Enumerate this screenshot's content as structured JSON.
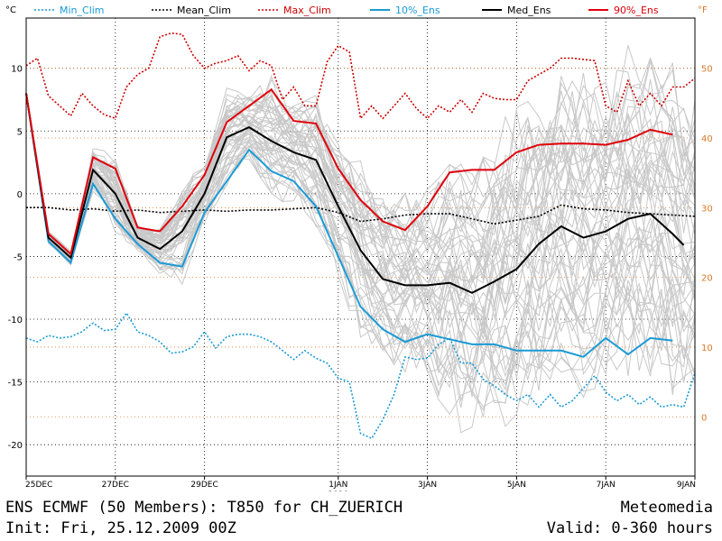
{
  "chart_data": {
    "type": "line",
    "ylabel_left": "°C",
    "ylabel_right": "°F",
    "xlim": [
      0,
      360
    ],
    "ylim": [
      -22.5,
      14
    ],
    "yticks_c": [
      -20,
      -15,
      -10,
      -5,
      0,
      5,
      10
    ],
    "yticks_f": [
      0,
      10,
      20,
      30,
      40,
      50
    ],
    "x_ticks": [
      {
        "x": 0,
        "label": "25DEC"
      },
      {
        "x": 48,
        "label": "27DEC"
      },
      {
        "x": 96,
        "label": "29DEC"
      },
      {
        "x": 168,
        "label": "1JAN",
        "sub": "2010"
      },
      {
        "x": 216,
        "label": "3JAN"
      },
      {
        "x": 264,
        "label": "5JAN"
      },
      {
        "x": 312,
        "label": "7JAN"
      },
      {
        "x": 360,
        "label": "9JAN"
      }
    ],
    "legend_placement": "top",
    "series": [
      {
        "name": "Min_Clim",
        "color": "#1a9ad6",
        "dash": "dotted",
        "x": [
          0,
          6,
          12,
          18,
          24,
          30,
          36,
          42,
          48,
          54,
          60,
          66,
          72,
          78,
          84,
          90,
          96,
          102,
          108,
          114,
          120,
          126,
          132,
          138,
          144,
          150,
          156,
          162,
          168,
          174,
          180,
          186,
          192,
          198,
          204,
          210,
          216,
          222,
          228,
          234,
          240,
          246,
          252,
          258,
          264,
          270,
          276,
          282,
          288,
          294,
          300,
          306,
          312,
          318,
          324,
          330,
          336,
          342,
          348,
          354,
          360
        ],
        "y": [
          -11.5,
          -11.8,
          -11.3,
          -11.5,
          -11.4,
          -11,
          -10.3,
          -10.9,
          -10.8,
          -9.5,
          -11,
          -11.3,
          -11.8,
          -12.7,
          -12.6,
          -12.2,
          -11,
          -12.3,
          -11.4,
          -11.2,
          -11.2,
          -11.4,
          -11.8,
          -12.5,
          -13.2,
          -12.5,
          -13.1,
          -13.5,
          -14.7,
          -15,
          -19.1,
          -19.5,
          -18,
          -16,
          -13,
          -13.2,
          -13.1,
          -12,
          -11.5,
          -13.5,
          -13.5,
          -14.8,
          -15.3,
          -16,
          -16.5,
          -16,
          -17,
          -16,
          -17,
          -16.5,
          -15.5,
          -14.5,
          -15.8,
          -16.5,
          -16,
          -16.8,
          -16.2,
          -17,
          -16.8,
          -17,
          -14.3
        ]
      },
      {
        "name": "Mean_Clim",
        "color": "#000000",
        "dash": "dotted",
        "x": [
          0,
          12,
          24,
          36,
          48,
          60,
          72,
          84,
          96,
          108,
          120,
          132,
          144,
          156,
          168,
          180,
          192,
          204,
          216,
          228,
          240,
          252,
          264,
          276,
          288,
          300,
          312,
          324,
          336,
          348,
          360
        ],
        "y": [
          -1.1,
          -1.1,
          -1.3,
          -1.2,
          -1.4,
          -1.3,
          -1.5,
          -1.4,
          -1.3,
          -1.4,
          -1.3,
          -1.3,
          -1.2,
          -1.1,
          -1.5,
          -2.2,
          -2,
          -1.7,
          -1.6,
          -1.6,
          -2,
          -2.4,
          -2.1,
          -1.8,
          -0.9,
          -1.2,
          -1.3,
          -1.5,
          -1.6,
          -1.7,
          -1.8
        ]
      },
      {
        "name": "Max_Clim",
        "color": "#cc0000",
        "dash": "dotted",
        "x": [
          0,
          6,
          12,
          18,
          24,
          30,
          36,
          42,
          48,
          54,
          60,
          66,
          72,
          78,
          84,
          90,
          96,
          102,
          108,
          114,
          120,
          126,
          132,
          138,
          144,
          150,
          156,
          162,
          168,
          174,
          180,
          186,
          192,
          198,
          204,
          210,
          216,
          222,
          228,
          234,
          240,
          246,
          252,
          258,
          264,
          270,
          276,
          282,
          288,
          294,
          300,
          306,
          312,
          318,
          324,
          330,
          336,
          342,
          348,
          354,
          360
        ],
        "y": [
          10.2,
          10.8,
          7.8,
          7,
          6.2,
          8,
          7,
          6.3,
          6,
          8.5,
          9.5,
          10,
          12.5,
          12.8,
          12.7,
          11,
          10,
          10.4,
          10.6,
          11,
          9.8,
          10.6,
          10.2,
          7.5,
          8.5,
          7,
          7,
          10.5,
          11.8,
          11.3,
          6,
          7,
          6,
          7,
          8,
          6.8,
          6,
          7,
          6.5,
          7.5,
          6.5,
          8,
          7.6,
          7.5,
          7.5,
          9,
          9.5,
          10,
          10.8,
          10.8,
          10.7,
          10.6,
          7,
          6.5,
          9,
          7,
          8,
          7,
          8.5,
          8.5,
          9.2
        ]
      },
      {
        "name": "10%_Ens",
        "color": "#1a9ad6",
        "dash": "solid",
        "x": [
          0,
          12,
          24,
          36,
          48,
          60,
          72,
          84,
          96,
          108,
          120,
          132,
          144,
          156,
          168,
          180,
          192,
          204,
          216,
          228,
          240,
          252,
          264,
          276,
          288,
          300,
          312,
          324,
          336,
          348
        ],
        "y": [
          8,
          -3.8,
          -5.5,
          0.8,
          -2,
          -4,
          -5.5,
          -5.8,
          -1.5,
          1,
          3.5,
          1.8,
          1,
          -1,
          -5,
          -9,
          -10.8,
          -11.8,
          -11.2,
          -11.6,
          -12,
          -12,
          -12.5,
          -12.5,
          -12.5,
          -13,
          -11.5,
          -12.8,
          -11.5,
          -11.7
        ]
      },
      {
        "name": "Med_Ens",
        "color": "#000000",
        "dash": "solid",
        "x": [
          0,
          12,
          24,
          36,
          48,
          60,
          72,
          84,
          96,
          108,
          120,
          132,
          144,
          156,
          168,
          180,
          192,
          204,
          216,
          228,
          240,
          252,
          264,
          276,
          288,
          300,
          312,
          324,
          336,
          348,
          354
        ],
        "y": [
          8,
          -3.5,
          -5.1,
          1.9,
          0,
          -3.5,
          -4.4,
          -3,
          0,
          4.5,
          5.3,
          4.2,
          3.3,
          2.7,
          -1,
          -4.5,
          -6.8,
          -7.3,
          -7.3,
          -7.1,
          -7.9,
          -7,
          -6,
          -4,
          -2.6,
          -3.5,
          -3,
          -2,
          -1.6,
          -3.2,
          -4.1
        ]
      },
      {
        "name": "90%_Ens",
        "color": "#e0000a",
        "dash": "solid",
        "x": [
          0,
          12,
          24,
          36,
          48,
          60,
          72,
          84,
          96,
          108,
          120,
          132,
          144,
          156,
          168,
          180,
          192,
          204,
          216,
          228,
          240,
          252,
          264,
          276,
          288,
          300,
          312,
          324,
          336,
          348
        ],
        "y": [
          8,
          -3.2,
          -4.8,
          2.9,
          2,
          -2.7,
          -3,
          -1,
          1.5,
          5.7,
          7,
          8.3,
          5.8,
          5.6,
          2,
          -0.5,
          -2.2,
          -2.9,
          -1,
          1.7,
          1.9,
          1.9,
          3.3,
          3.9,
          4,
          4,
          3.9,
          4.3,
          5.1,
          4.7
        ]
      }
    ]
  },
  "legend": [
    {
      "label": "Min_Clim",
      "color": "#1a9ad6",
      "dash": "dotted"
    },
    {
      "label": "Mean_Clim",
      "color": "#000000",
      "dash": "dotted"
    },
    {
      "label": "Max_Clim",
      "color": "#cc0000",
      "dash": "dotted"
    },
    {
      "label": "10%_Ens",
      "color": "#1a9ad6",
      "dash": "solid"
    },
    {
      "label": "Med_Ens",
      "color": "#000000",
      "dash": "solid"
    },
    {
      "label": "90%_Ens",
      "color": "#e0000a",
      "dash": "solid"
    }
  ],
  "colors": {
    "fahrenheit": "#d87a2a",
    "members": "#c8c8c8"
  },
  "footer": {
    "title": "ENS ECMWF (50 Members): T850 for CH_ZUERICH",
    "init": "Init: Fri, 25.12.2009 00Z",
    "brand": "Meteomedia",
    "valid": "Valid: 0-360 hours"
  }
}
